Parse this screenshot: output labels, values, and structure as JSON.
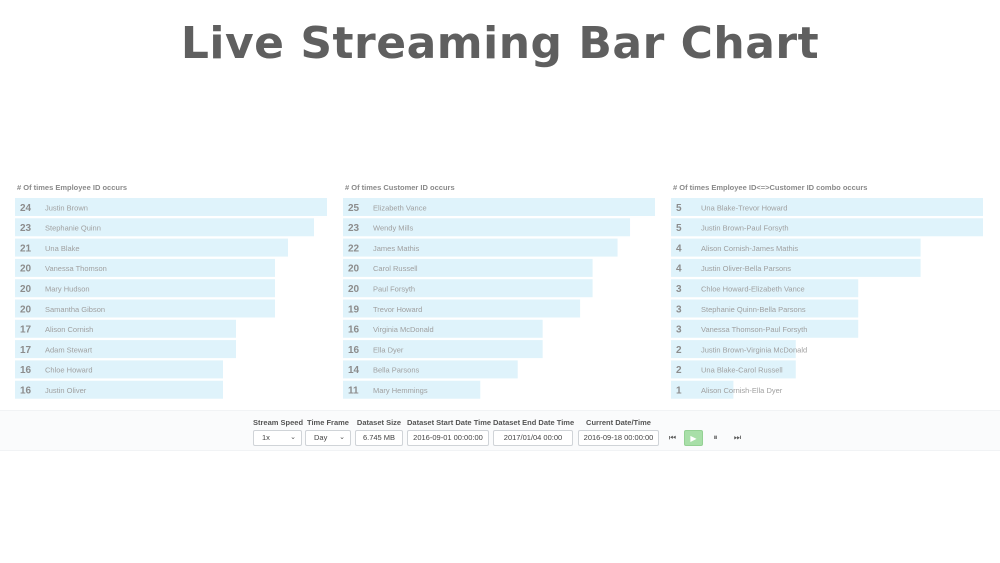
{
  "page": {
    "title": "Live Streaming Bar Chart"
  },
  "chart_data": [
    {
      "type": "bar",
      "orientation": "horizontal",
      "title": "# Of times Employee ID occurs",
      "xlim": [
        0,
        24
      ],
      "grid": false,
      "categories": [
        "Justin Brown",
        "Stephanie Quinn",
        "Una Blake",
        "Vanessa Thomson",
        "Mary Hudson",
        "Samantha Gibson",
        "Alison Cornish",
        "Adam Stewart",
        "Chloe Howard",
        "Justin Oliver"
      ],
      "values": [
        24,
        23,
        21,
        20,
        20,
        20,
        17,
        17,
        16,
        16
      ],
      "bar_color": "#dff3fb"
    },
    {
      "type": "bar",
      "orientation": "horizontal",
      "title": "# Of times Customer ID occurs",
      "xlim": [
        0,
        25
      ],
      "grid": false,
      "categories": [
        "Elizabeth Vance",
        "Wendy Mills",
        "James Mathis",
        "Carol Russell",
        "Paul Forsyth",
        "Trevor Howard",
        "Virginia McDonald",
        "Ella Dyer",
        "Bella Parsons",
        "Mary Hemmings"
      ],
      "values": [
        25,
        23,
        22,
        20,
        20,
        19,
        16,
        16,
        14,
        11
      ],
      "bar_color": "#dff3fb"
    },
    {
      "type": "bar",
      "orientation": "horizontal",
      "title": "# Of times Employee ID<=>Customer ID combo occurs",
      "xlim": [
        0,
        5
      ],
      "grid": false,
      "categories": [
        "Una Blake-Trevor Howard",
        "Justin Brown-Paul Forsyth",
        "Alison Cornish-James Mathis",
        "Justin Oliver-Bella Parsons",
        "Chloe Howard-Elizabeth Vance",
        "Stephanie Quinn-Bella Parsons",
        "Vanessa Thomson-Paul Forsyth",
        "Justin Brown-Virginia McDonald",
        "Una Blake-Carol Russell",
        "Alison Cornish-Ella Dyer"
      ],
      "values": [
        5,
        5,
        4,
        4,
        3,
        3,
        3,
        2,
        2,
        1
      ],
      "bar_color": "#dff3fb"
    }
  ],
  "controls": {
    "stream_speed": {
      "label": "Stream Speed",
      "value": "1x"
    },
    "time_frame": {
      "label": "Time Frame",
      "value": "Day"
    },
    "dataset_size": {
      "label": "Dataset Size",
      "value": "6.745 MB"
    },
    "start_date": {
      "label": "Dataset Start Date Time",
      "value": "2016-09-01 00:00:00"
    },
    "end_date": {
      "label": "Dataset End Date Time",
      "value": "2017/01/04 00:00"
    },
    "current_date": {
      "label": "Current Date/Time",
      "value": "2016-09-18 00:00:00"
    },
    "buttons": {
      "skip_back": {
        "icon": "skip-back-icon",
        "glyph": "⏮"
      },
      "play": {
        "icon": "play-icon",
        "glyph": "▶"
      },
      "pause": {
        "icon": "pause-icon",
        "glyph": "⏸"
      },
      "skip_forward": {
        "icon": "skip-forward-icon",
        "glyph": "⏭"
      }
    },
    "chevron_glyph": "⌄",
    "play_color": "#a8dfa8"
  }
}
